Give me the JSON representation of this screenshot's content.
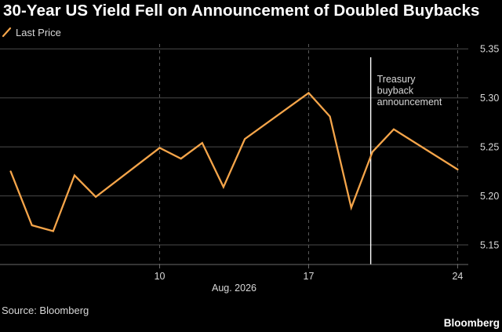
{
  "title": "30-Year US Yield Fell on Announcement of Doubled Buybacks",
  "legend": {
    "label": "Last Price",
    "color": "#f5a54a"
  },
  "source": "Source: Bloomberg",
  "brand": "Bloomberg",
  "chart_data": {
    "type": "line",
    "title": "30-Year US Yield Fell on Announcement of Doubled Buybacks",
    "xlabel": "Aug. 2026",
    "ylabel": "",
    "x": [
      "2026-08-03",
      "2026-08-04",
      "2026-08-05",
      "2026-08-06",
      "2026-08-07",
      "2026-08-10",
      "2026-08-11",
      "2026-08-12",
      "2026-08-13",
      "2026-08-14",
      "2026-08-17",
      "2026-08-18",
      "2026-08-19",
      "2026-08-20",
      "2026-08-21",
      "2026-08-24"
    ],
    "xlim": [
      "2026-08-02T12:00",
      "2026-08-24T12:00"
    ],
    "x_ticks": [
      {
        "x": "2026-08-10",
        "label": "10"
      },
      {
        "x": "2026-08-17",
        "label": "17"
      },
      {
        "x": "2026-08-24",
        "label": "24"
      }
    ],
    "series": [
      {
        "name": "Last Price",
        "color": "#f5a54a",
        "values": [
          5.225,
          5.17,
          5.164,
          5.221,
          5.199,
          5.249,
          5.238,
          5.254,
          5.209,
          5.258,
          5.305,
          5.281,
          5.188,
          5.245,
          5.268,
          5.227
        ]
      }
    ],
    "ylim": [
      5.13,
      5.355
    ],
    "y_ticks": [
      5.15,
      5.2,
      5.25,
      5.3,
      5.35
    ],
    "y_tick_labels": [
      "5.15",
      "5.20",
      "5.25",
      "5.30",
      "5.35"
    ],
    "annotations": [
      {
        "x": "2026-08-19T22:00",
        "lines": [
          "Treasury",
          "buyback",
          "announcement"
        ],
        "color": "#ffffff"
      }
    ],
    "grid": true,
    "legend_position": "top-left",
    "axis_position": "right"
  }
}
